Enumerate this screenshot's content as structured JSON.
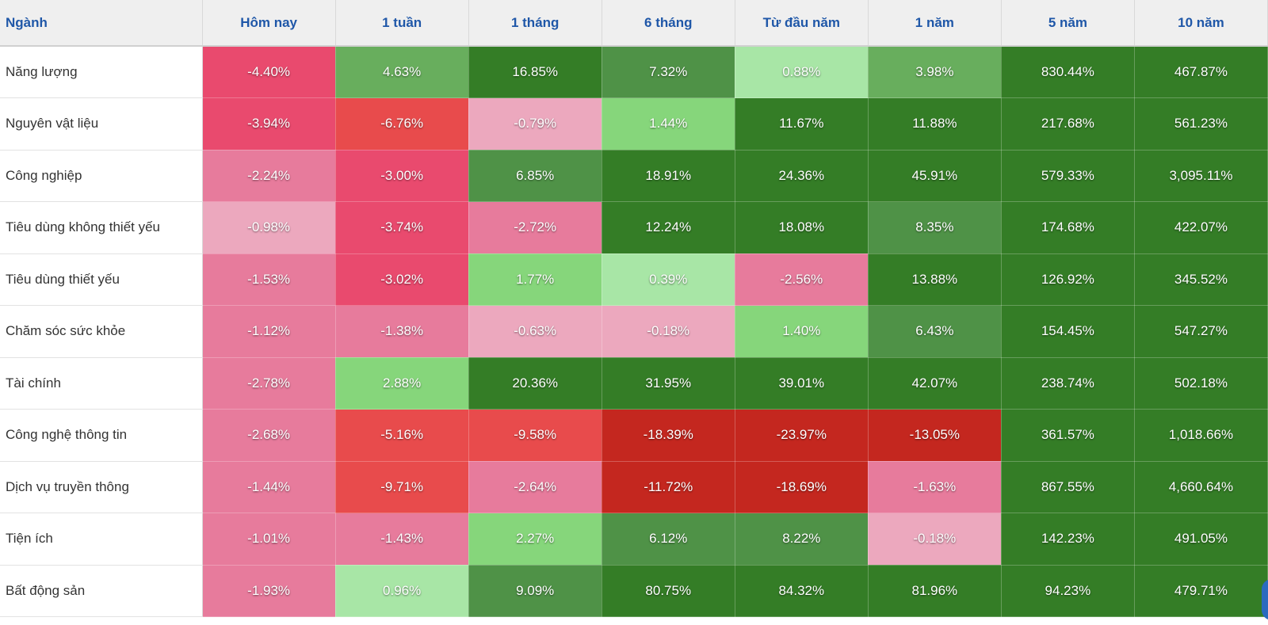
{
  "header": {
    "sector": "Ngành",
    "periods": [
      "Hôm nay",
      "1 tuần",
      "1 tháng",
      "6 tháng",
      "Từ đầu năm",
      "1 năm",
      "5 năm",
      "10 năm"
    ]
  },
  "colors": {
    "pos_light": "#a8e6a6",
    "pos_mid": "#86d67b",
    "pos_midstrong": "#68ae5d",
    "pos_strong": "#4f9247",
    "pos_deep": "#347d26",
    "neg_light": "#eca8be",
    "neg_mid": "#e77b9c",
    "neg_strong": "#e94a6e",
    "neg_red": "#e84b4c",
    "neg_deep": "#c4271f"
  },
  "rows": [
    {
      "sector": "Năng lượng",
      "values": [
        "-4.40%",
        "4.63%",
        "16.85%",
        "7.32%",
        "0.88%",
        "3.98%",
        "830.44%",
        "467.87%"
      ]
    },
    {
      "sector": "Nguyên vật liệu",
      "values": [
        "-3.94%",
        "-6.76%",
        "-0.79%",
        "1.44%",
        "11.67%",
        "11.88%",
        "217.68%",
        "561.23%"
      ]
    },
    {
      "sector": "Công nghiệp",
      "values": [
        "-2.24%",
        "-3.00%",
        "6.85%",
        "18.91%",
        "24.36%",
        "45.91%",
        "579.33%",
        "3,095.11%"
      ]
    },
    {
      "sector": "Tiêu dùng không thiết yếu",
      "values": [
        "-0.98%",
        "-3.74%",
        "-2.72%",
        "12.24%",
        "18.08%",
        "8.35%",
        "174.68%",
        "422.07%"
      ]
    },
    {
      "sector": "Tiêu dùng thiết yếu",
      "values": [
        "-1.53%",
        "-3.02%",
        "1.77%",
        "0.39%",
        "-2.56%",
        "13.88%",
        "126.92%",
        "345.52%"
      ]
    },
    {
      "sector": "Chăm sóc sức khỏe",
      "values": [
        "-1.12%",
        "-1.38%",
        "-0.63%",
        "-0.18%",
        "1.40%",
        "6.43%",
        "154.45%",
        "547.27%"
      ]
    },
    {
      "sector": "Tài chính",
      "values": [
        "-2.78%",
        "2.88%",
        "20.36%",
        "31.95%",
        "39.01%",
        "42.07%",
        "238.74%",
        "502.18%"
      ]
    },
    {
      "sector": "Công nghệ thông tin",
      "values": [
        "-2.68%",
        "-5.16%",
        "-9.58%",
        "-18.39%",
        "-23.97%",
        "-13.05%",
        "361.57%",
        "1,018.66%"
      ]
    },
    {
      "sector": "Dịch vụ truyền thông",
      "values": [
        "-1.44%",
        "-9.71%",
        "-2.64%",
        "-11.72%",
        "-18.69%",
        "-1.63%",
        "867.55%",
        "4,660.64%"
      ]
    },
    {
      "sector": "Tiện ích",
      "values": [
        "-1.01%",
        "-1.43%",
        "2.27%",
        "6.12%",
        "8.22%",
        "-0.18%",
        "142.23%",
        "491.05%"
      ]
    },
    {
      "sector": "Bất động sản",
      "values": [
        "-1.93%",
        "0.96%",
        "9.09%",
        "80.75%",
        "84.32%",
        "81.96%",
        "94.23%",
        "479.71%"
      ]
    }
  ],
  "tones": [
    [
      "neg_strong",
      "pos_midstrong",
      "pos_deep",
      "pos_strong",
      "pos_light",
      "pos_midstrong",
      "pos_deep",
      "pos_deep"
    ],
    [
      "neg_strong",
      "neg_red",
      "neg_light",
      "pos_mid",
      "pos_deep",
      "pos_deep",
      "pos_deep",
      "pos_deep"
    ],
    [
      "neg_mid",
      "neg_strong",
      "pos_strong",
      "pos_deep",
      "pos_deep",
      "pos_deep",
      "pos_deep",
      "pos_deep"
    ],
    [
      "neg_light",
      "neg_strong",
      "neg_mid",
      "pos_deep",
      "pos_deep",
      "pos_strong",
      "pos_deep",
      "pos_deep"
    ],
    [
      "neg_mid",
      "neg_strong",
      "pos_mid",
      "pos_light",
      "neg_mid",
      "pos_deep",
      "pos_deep",
      "pos_deep"
    ],
    [
      "neg_mid",
      "neg_mid",
      "neg_light",
      "neg_light",
      "pos_mid",
      "pos_strong",
      "pos_deep",
      "pos_deep"
    ],
    [
      "neg_mid",
      "pos_mid",
      "pos_deep",
      "pos_deep",
      "pos_deep",
      "pos_deep",
      "pos_deep",
      "pos_deep"
    ],
    [
      "neg_mid",
      "neg_red",
      "neg_red",
      "neg_deep",
      "neg_deep",
      "neg_deep",
      "pos_deep",
      "pos_deep"
    ],
    [
      "neg_mid",
      "neg_red",
      "neg_mid",
      "neg_deep",
      "neg_deep",
      "neg_mid",
      "pos_deep",
      "pos_deep"
    ],
    [
      "neg_mid",
      "neg_mid",
      "pos_mid",
      "pos_strong",
      "pos_strong",
      "neg_light",
      "pos_deep",
      "pos_deep"
    ],
    [
      "neg_mid",
      "pos_light",
      "pos_strong",
      "pos_deep",
      "pos_deep",
      "pos_deep",
      "pos_deep",
      "pos_deep"
    ]
  ]
}
